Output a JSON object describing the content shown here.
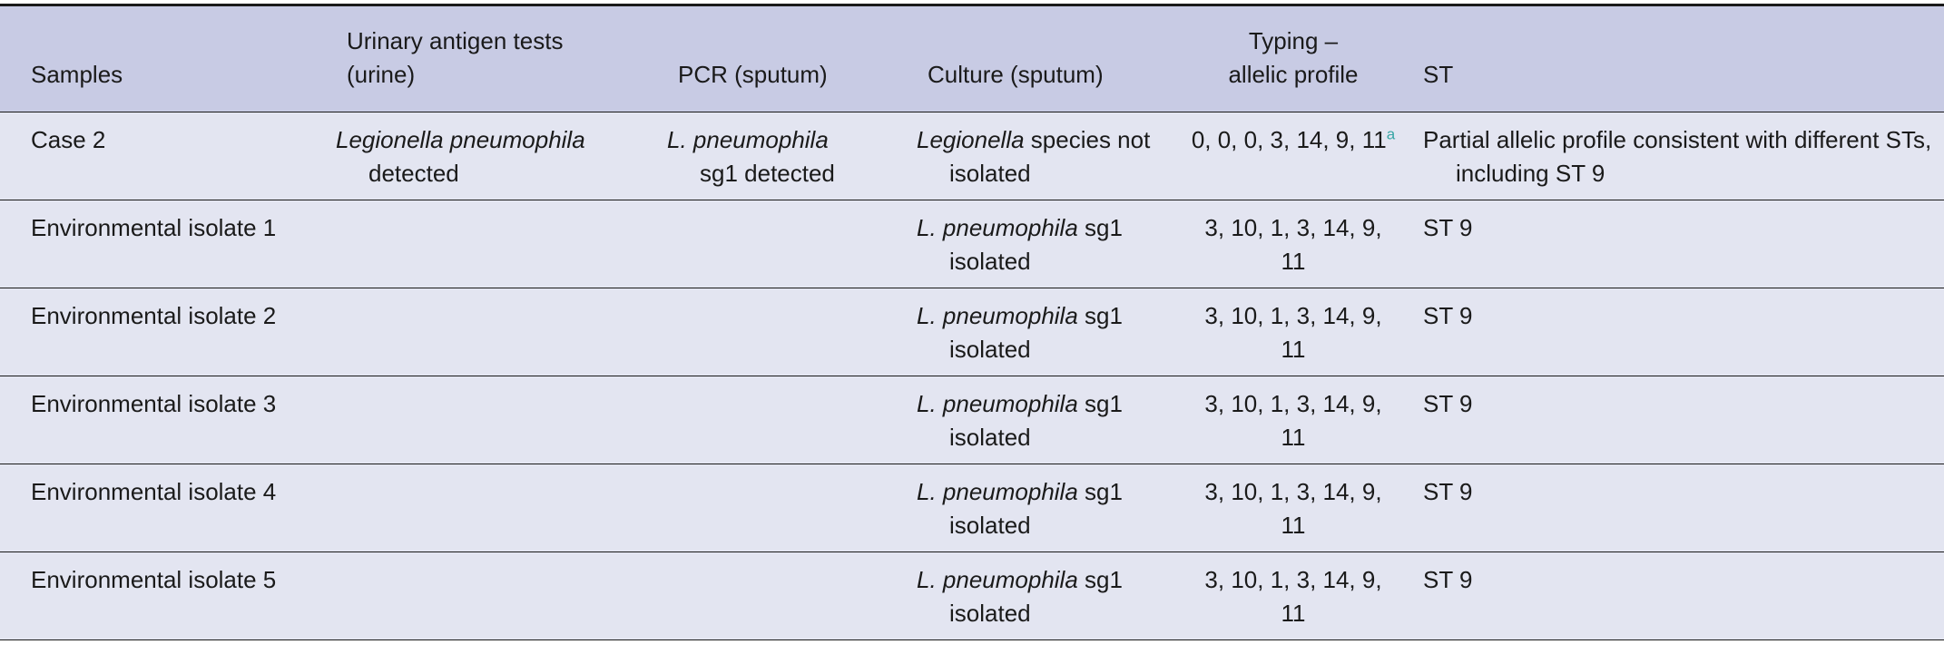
{
  "columns": [
    "Samples",
    "Urinary antigen tests (urine)",
    "PCR (sputum)",
    "Culture (sputum)",
    "Typing – allelic profile",
    "ST"
  ],
  "header": {
    "urinary_line1": "Urinary antigen tests",
    "urinary_line2": "(urine)",
    "typing_line1": "Typing –",
    "typing_line2": "allelic profile"
  },
  "rows": [
    {
      "sample": "Case 2",
      "urinary_italic": "Legionella pneumophila",
      "urinary_rest": "detected",
      "pcr_italic": "L. pneumophila",
      "pcr_rest": "sg1 detected",
      "culture_italic": "Legionella",
      "culture_rest": " species not isolated",
      "typing": "0, 0, 0, 3, 14, 9, 11",
      "typing_note": "a",
      "st": "Partial allelic profile consistent with different STs, including ST 9"
    },
    {
      "sample": "Environmental isolate 1",
      "culture_italic": "L. pneumophila",
      "culture_rest": " sg1 isolated",
      "typing": "3, 10, 1, 3, 14, 9, 11",
      "st": "ST 9"
    },
    {
      "sample": "Environmental isolate 2",
      "culture_italic": "L. pneumophila",
      "culture_rest": " sg1 isolated",
      "typing": "3, 10, 1, 3, 14, 9, 11",
      "st": "ST 9"
    },
    {
      "sample": "Environmental isolate 3",
      "culture_italic": "L. pneumophila",
      "culture_rest": " sg1 isolated",
      "typing": "3, 10, 1, 3, 14, 9, 11",
      "st": "ST 9"
    },
    {
      "sample": "Environmental isolate 4",
      "culture_italic": "L. pneumophila",
      "culture_rest": " sg1 isolated",
      "typing": "3, 10, 1, 3, 14, 9, 11",
      "st": "ST 9"
    },
    {
      "sample": "Environmental isolate 5",
      "culture_italic": "L. pneumophila",
      "culture_rest": " sg1 isolated",
      "typing": "3, 10, 1, 3, 14, 9, 11",
      "st": "ST 9"
    }
  ]
}
